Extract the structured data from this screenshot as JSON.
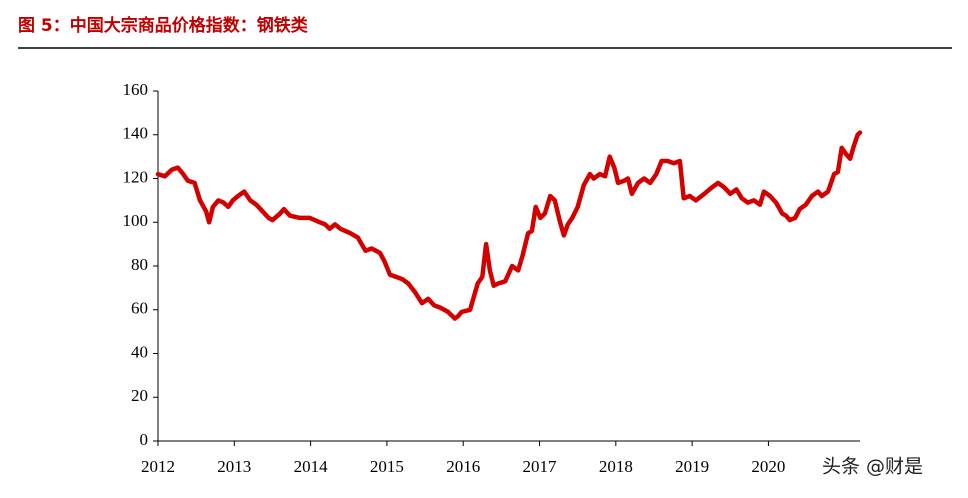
{
  "chart_data": {
    "type": "line",
    "title": "图 5：中国大宗商品价格指数：钢铁类",
    "watermark": "头条 @财是",
    "xlim": [
      2012,
      2021.2
    ],
    "xticks": [
      2012,
      2013,
      2014,
      2015,
      2016,
      2017,
      2018,
      2019,
      2020
    ],
    "ylim": [
      0,
      160
    ],
    "yticks": [
      0,
      20,
      40,
      60,
      80,
      100,
      120,
      140,
      160
    ],
    "grid": false,
    "x": [
      2012.0,
      2012.09,
      2012.18,
      2012.26,
      2012.33,
      2012.39,
      2012.48,
      2012.55,
      2012.63,
      2012.67,
      2012.72,
      2012.79,
      2012.86,
      2012.92,
      2012.98,
      2013.05,
      2013.13,
      2013.21,
      2013.29,
      2013.37,
      2013.45,
      2013.5,
      2013.6,
      2013.65,
      2013.73,
      2013.86,
      2013.99,
      2014.12,
      2014.19,
      2014.25,
      2014.32,
      2014.39,
      2014.52,
      2014.62,
      2014.72,
      2014.8,
      2014.91,
      2014.97,
      2015.04,
      2015.12,
      2015.2,
      2015.28,
      2015.37,
      2015.46,
      2015.54,
      2015.62,
      2015.7,
      2015.8,
      2015.89,
      2015.93,
      2015.98,
      2016.09,
      2016.14,
      2016.19,
      2016.25,
      2016.3,
      2016.35,
      2016.4,
      2016.46,
      2016.55,
      2016.64,
      2016.72,
      2016.78,
      2016.85,
      2016.9,
      2016.95,
      2017.01,
      2017.07,
      2017.14,
      2017.2,
      2017.27,
      2017.32,
      2017.37,
      2017.43,
      2017.5,
      2017.58,
      2017.66,
      2017.71,
      2017.79,
      2017.86,
      2017.92,
      2017.98,
      2018.03,
      2018.11,
      2018.16,
      2018.21,
      2018.29,
      2018.37,
      2018.45,
      2018.53,
      2018.6,
      2018.68,
      2018.76,
      2018.84,
      2018.89,
      2018.97,
      2019.05,
      2019.16,
      2019.26,
      2019.34,
      2019.42,
      2019.5,
      2019.58,
      2019.65,
      2019.73,
      2019.81,
      2019.89,
      2019.94,
      2020.02,
      2020.1,
      2020.18,
      2020.23,
      2020.28,
      2020.35,
      2020.41,
      2020.49,
      2020.57,
      2020.65,
      2020.7,
      2020.78,
      2020.86,
      2020.91,
      2020.96,
      2021.02,
      2021.07,
      2021.12,
      2021.17,
      2021.2
    ],
    "series": [
      {
        "name": "钢铁类",
        "color": "#d40000",
        "values": [
          122,
          121,
          124,
          125,
          122,
          119,
          118,
          110,
          105,
          100,
          107,
          110,
          109,
          107,
          110,
          112,
          114,
          110,
          108,
          105,
          102,
          101,
          104,
          106,
          103,
          102,
          102,
          100,
          99,
          97,
          99,
          97,
          95,
          93,
          87,
          88,
          86,
          82,
          76,
          75,
          74,
          72,
          68,
          63,
          65,
          62,
          61,
          59,
          56,
          57,
          59,
          60,
          66,
          72,
          75,
          90,
          78,
          71,
          72,
          73,
          80,
          78,
          85,
          95,
          96,
          107,
          102,
          104,
          112,
          110,
          100,
          94,
          99,
          102,
          107,
          117,
          122,
          120,
          122,
          121,
          130,
          125,
          118,
          119,
          120,
          113,
          118,
          120,
          118,
          122,
          128,
          128,
          127,
          128,
          111,
          112,
          110,
          113,
          116,
          118,
          116,
          113,
          115,
          111,
          109,
          110,
          108,
          114,
          112,
          109,
          104,
          103,
          101,
          102,
          106,
          108,
          112,
          114,
          112,
          114,
          122,
          123,
          134,
          131,
          129,
          135,
          140,
          141
        ]
      }
    ]
  }
}
